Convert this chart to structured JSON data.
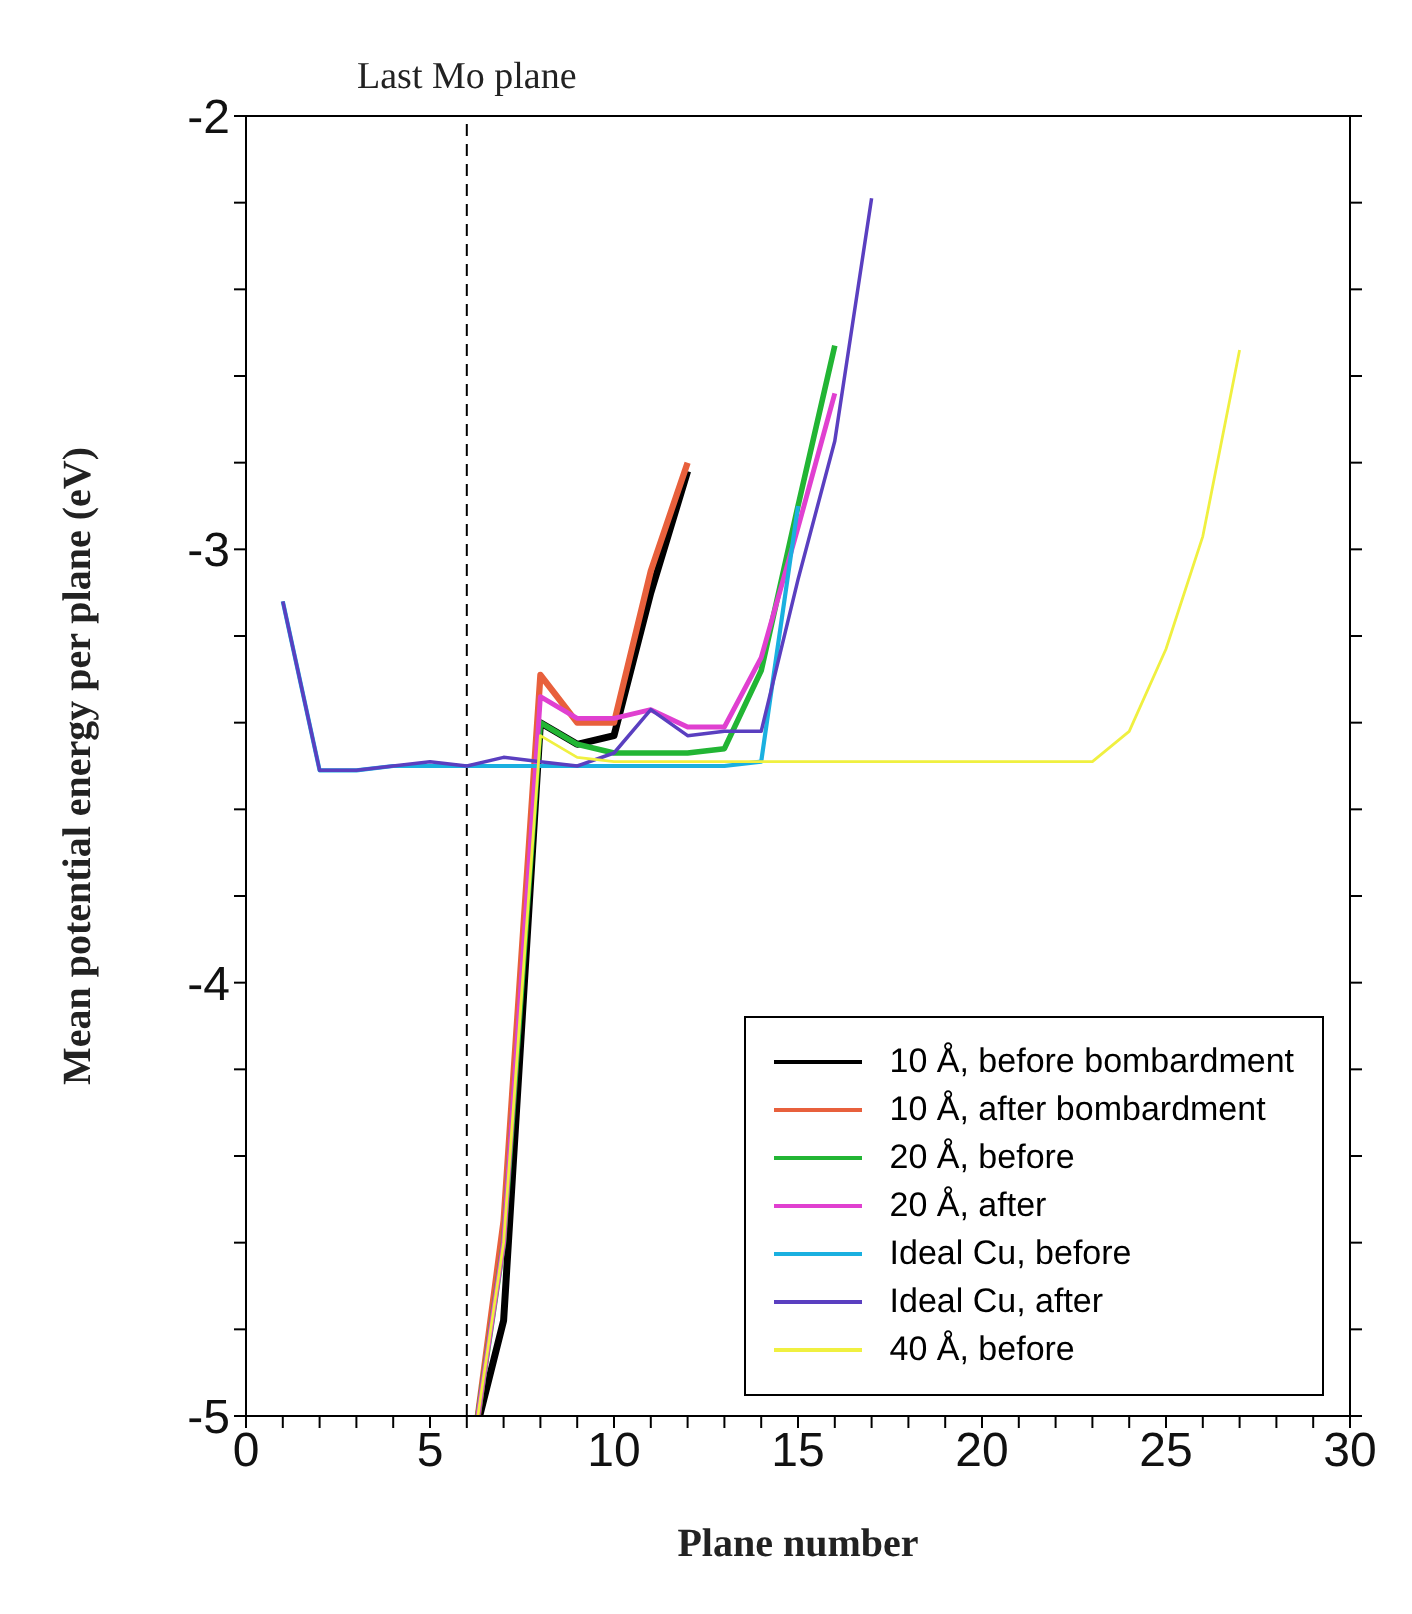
{
  "chart_data": {
    "type": "line",
    "xlabel": "Plane number",
    "ylabel": "Mean potential energy per plane (eV)",
    "xlim": [
      0,
      30
    ],
    "ylim": [
      -5,
      -2
    ],
    "xticks": [
      0,
      {
        "value": 1,
        "label": null
      },
      {
        "value": 2,
        "label": null
      },
      {
        "value": 3,
        "label": null
      },
      {
        "value": 4,
        "label": null
      },
      5,
      {
        "value": 6,
        "label": null
      },
      {
        "value": 7,
        "label": null
      },
      {
        "value": 8,
        "label": null
      },
      {
        "value": 9,
        "label": null
      },
      10,
      {
        "value": 11,
        "label": null
      },
      {
        "value": 12,
        "label": null
      },
      {
        "value": 13,
        "label": null
      },
      {
        "value": 14,
        "label": null
      },
      15,
      {
        "value": 16,
        "label": null
      },
      {
        "value": 17,
        "label": null
      },
      {
        "value": 18,
        "label": null
      },
      {
        "value": 19,
        "label": null
      },
      20,
      {
        "value": 21,
        "label": null
      },
      {
        "value": 22,
        "label": null
      },
      {
        "value": 23,
        "label": null
      },
      {
        "value": 24,
        "label": null
      },
      25,
      {
        "value": 26,
        "label": null
      },
      {
        "value": 27,
        "label": null
      },
      {
        "value": 28,
        "label": null
      },
      {
        "value": 29,
        "label": null
      },
      30
    ],
    "yticks": [
      -5,
      {
        "value": -4.8,
        "label": null
      },
      {
        "value": -4.6,
        "label": null
      },
      {
        "value": -4.4,
        "label": null
      },
      {
        "value": -4.2,
        "label": null
      },
      -4,
      {
        "value": -3.8,
        "label": null
      },
      {
        "value": -3.6,
        "label": null
      },
      {
        "value": -3.4,
        "label": null
      },
      {
        "value": -3.2,
        "label": null
      },
      -3,
      {
        "value": -2.8,
        "label": null
      },
      {
        "value": -2.6,
        "label": null
      },
      {
        "value": -2.4,
        "label": null
      },
      {
        "value": -2.2,
        "label": null
      },
      -2
    ],
    "grid": false,
    "legend": "bottom right",
    "marker": "none",
    "line_style": "solid",
    "ref_lines": [
      {
        "axis": "x",
        "value": 6,
        "label": "Last Mo plane",
        "color": "#000000",
        "line_style": "dashed"
      }
    ],
    "series": [
      {
        "name": "10 Å, before bombardment",
        "color": "#000000",
        "x": [
          6.35,
          7,
          8,
          9,
          10,
          11,
          12
        ],
        "values": [
          -5,
          -4.78,
          -3.4,
          -3.45,
          -3.43,
          -3.1,
          -2.82
        ]
      },
      {
        "name": "10 Å, after bombardment",
        "color": "#e8603c",
        "x": [
          6.3,
          7,
          8,
          9,
          10,
          11,
          12
        ],
        "values": [
          -5,
          -4.55,
          -3.29,
          -3.4,
          -3.4,
          -3.05,
          -2.8
        ]
      },
      {
        "name": "20 Å, before",
        "color": "#22b534",
        "x": [
          6.3,
          7,
          8,
          9,
          10,
          11,
          12,
          13,
          14,
          15,
          16
        ],
        "values": [
          -5,
          -4.6,
          -3.4,
          -3.45,
          -3.47,
          -3.47,
          -3.47,
          -3.46,
          -3.28,
          -2.9,
          -2.53
        ]
      },
      {
        "name": "20 Å, after",
        "color": "#e040d0",
        "x": [
          6.3,
          7,
          8,
          9,
          10,
          11,
          12,
          13,
          14,
          15,
          16
        ],
        "values": [
          -5,
          -4.6,
          -3.34,
          -3.39,
          -3.39,
          -3.37,
          -3.41,
          -3.41,
          -3.25,
          -2.95,
          -2.64
        ]
      },
      {
        "name": "Ideal Cu, before",
        "color": "#1ab0e0",
        "x": [
          1,
          2,
          3,
          4,
          5,
          6,
          7,
          8,
          9,
          10,
          11,
          12,
          13,
          14,
          15
        ],
        "values": [
          -3.12,
          -3.51,
          -3.51,
          -3.5,
          -3.5,
          -3.5,
          -3.5,
          -3.5,
          -3.5,
          -3.5,
          -3.5,
          -3.5,
          -3.5,
          -3.49,
          -2.9
        ]
      },
      {
        "name": "Ideal Cu, after",
        "color": "#5a3fc0",
        "x": [
          1,
          2,
          3,
          4,
          5,
          6,
          7,
          8,
          9,
          10,
          11,
          12,
          13,
          14,
          15,
          16,
          17
        ],
        "values": [
          -3.12,
          -3.51,
          -3.51,
          -3.5,
          -3.49,
          -3.5,
          -3.48,
          -3.49,
          -3.5,
          -3.47,
          -3.37,
          -3.43,
          -3.42,
          -3.42,
          -3.07,
          -2.75,
          -2.19
        ]
      },
      {
        "name": "40 Å, before",
        "color": "#f0f040",
        "x": [
          6.3,
          7,
          8,
          9,
          10,
          11,
          12,
          13,
          14,
          15,
          16,
          17,
          18,
          19,
          20,
          21,
          22,
          23,
          24,
          25,
          26,
          27
        ],
        "values": [
          -5,
          -4.6,
          -3.43,
          -3.48,
          -3.49,
          -3.49,
          -3.49,
          -3.49,
          -3.49,
          -3.49,
          -3.49,
          -3.49,
          -3.49,
          -3.49,
          -3.49,
          -3.49,
          -3.49,
          -3.49,
          -3.42,
          -3.23,
          -2.97,
          -2.54
        ]
      }
    ]
  }
}
